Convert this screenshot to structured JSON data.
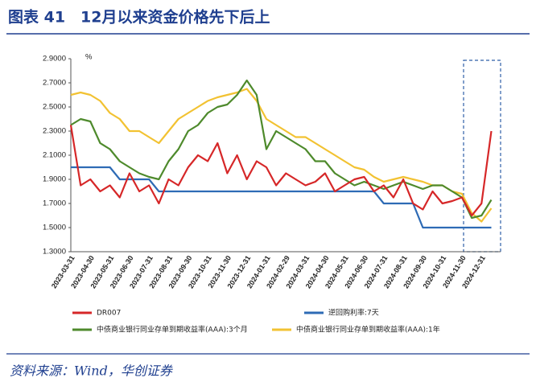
{
  "chart_data": {
    "type": "line",
    "title": "图表 41　12月以来资金价格先下后上",
    "unit": "%",
    "source": "资料来源：Wind，华创证券",
    "categories": [
      "2023-03-31",
      null,
      "2023-04-30",
      null,
      "2023-05-31",
      null,
      "2023-06-30",
      null,
      "2023-07-31",
      null,
      "2023-08-31",
      null,
      "2023-09-30",
      null,
      "2023-10-31",
      null,
      "2023-11-30",
      null,
      "2023-12-31",
      null,
      "2024-01-31",
      null,
      "2024-02-29",
      null,
      "2024-03-31",
      null,
      "2024-04-30",
      null,
      "2024-05-31",
      null,
      "2024-06-30",
      null,
      "2024-07-31",
      null,
      "2024-08-31",
      null,
      "2024-09-30",
      null,
      "2024-10-31",
      null,
      "2024-11-30",
      null,
      "2024-12-31",
      null
    ],
    "series": [
      {
        "name": "DR007",
        "color": "#d62728",
        "values": [
          2.35,
          1.85,
          1.9,
          1.8,
          1.85,
          1.75,
          1.95,
          1.8,
          1.85,
          1.7,
          1.9,
          1.85,
          2.0,
          2.1,
          2.05,
          2.2,
          1.95,
          2.1,
          1.9,
          2.05,
          2.0,
          1.85,
          1.95,
          1.9,
          1.85,
          1.88,
          1.95,
          1.8,
          1.85,
          1.9,
          1.92,
          1.8,
          1.85,
          1.75,
          1.9,
          1.7,
          1.65,
          1.8,
          1.7,
          1.72,
          1.75,
          1.6,
          1.7,
          2.3
        ]
      },
      {
        "name": "逆回购利率:7天",
        "color": "#2e6bb5",
        "values": [
          2.0,
          2.0,
          2.0,
          2.0,
          2.0,
          1.9,
          1.9,
          1.9,
          1.9,
          1.8,
          1.8,
          1.8,
          1.8,
          1.8,
          1.8,
          1.8,
          1.8,
          1.8,
          1.8,
          1.8,
          1.8,
          1.8,
          1.8,
          1.8,
          1.8,
          1.8,
          1.8,
          1.8,
          1.8,
          1.8,
          1.8,
          1.8,
          1.7,
          1.7,
          1.7,
          1.7,
          1.5,
          1.5,
          1.5,
          1.5,
          1.5,
          1.5,
          1.5,
          1.5
        ]
      },
      {
        "name": "中债商业银行同业存单到期收益率(AAA):3个月",
        "color": "#4e8a2c",
        "values": [
          2.35,
          2.4,
          2.38,
          2.2,
          2.15,
          2.05,
          2.0,
          1.95,
          1.92,
          1.9,
          2.05,
          2.15,
          2.3,
          2.35,
          2.45,
          2.5,
          2.52,
          2.6,
          2.72,
          2.6,
          2.15,
          2.3,
          2.25,
          2.2,
          2.15,
          2.05,
          2.05,
          1.95,
          1.9,
          1.85,
          1.88,
          1.85,
          1.82,
          1.85,
          1.88,
          1.85,
          1.82,
          1.85,
          1.85,
          1.8,
          1.75,
          1.58,
          1.6,
          1.73
        ]
      },
      {
        "name": "中债商业银行同业存单到期收益率(AAA):1年",
        "color": "#f2c232",
        "values": [
          2.6,
          2.62,
          2.6,
          2.55,
          2.45,
          2.4,
          2.3,
          2.3,
          2.25,
          2.2,
          2.3,
          2.4,
          2.45,
          2.5,
          2.55,
          2.58,
          2.6,
          2.62,
          2.65,
          2.55,
          2.4,
          2.35,
          2.3,
          2.25,
          2.25,
          2.2,
          2.15,
          2.1,
          2.05,
          2.0,
          1.98,
          1.92,
          1.88,
          1.9,
          1.92,
          1.9,
          1.88,
          1.85,
          1.85,
          1.8,
          1.78,
          1.62,
          1.55,
          1.66
        ]
      }
    ],
    "ylim": [
      1.3,
      2.9
    ],
    "yticks": [
      {
        "value": 1.3,
        "label": "1.3000"
      },
      {
        "value": 1.5,
        "label": "1.5000"
      },
      {
        "value": 1.7,
        "label": "1.7000"
      },
      {
        "value": 1.9,
        "label": "1.9000"
      },
      {
        "value": 2.1,
        "label": "2.1000"
      },
      {
        "value": 2.3,
        "label": "2.3000"
      },
      {
        "value": 2.5,
        "label": "2.5000"
      },
      {
        "value": 2.7,
        "label": "2.7000"
      },
      {
        "value": 2.9,
        "label": "2.9000"
      }
    ],
    "grid": false,
    "legend": "bottom"
  }
}
